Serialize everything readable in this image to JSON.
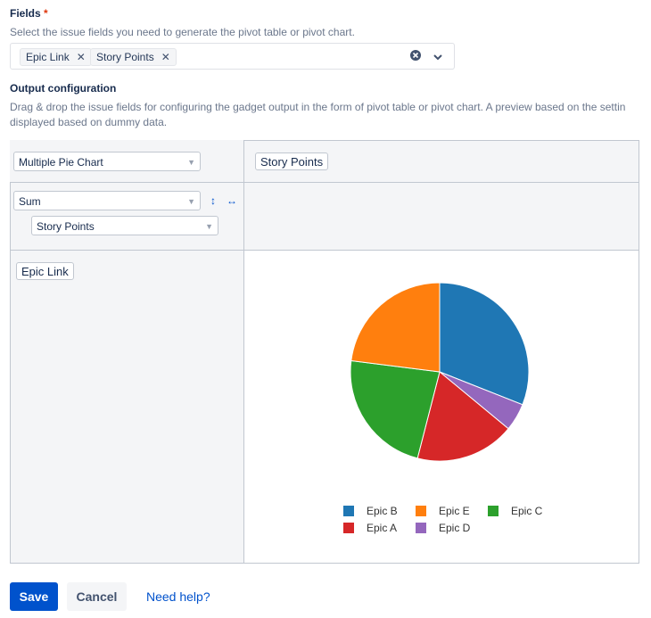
{
  "fields": {
    "label": "Fields",
    "required_mark": "*",
    "hint": "Select the issue fields you need to generate the pivot table or pivot chart.",
    "selected": [
      {
        "label": "Epic Link"
      },
      {
        "label": "Story Points"
      }
    ]
  },
  "output": {
    "label": "Output configuration",
    "hint_line1": "Drag & drop the issue fields for configuring the gadget output in the form of pivot table or pivot chart. A preview based on the settin",
    "hint_line2": "displayed based on dummy data.",
    "chart_type": "Multiple Pie Chart",
    "column_field": "Story Points",
    "aggregation": "Sum",
    "aggregation_field": "Story Points",
    "row_field": "Epic Link"
  },
  "chart_data": {
    "type": "pie",
    "categories": [
      "Epic B",
      "Epic D",
      "Epic A",
      "Epic C",
      "Epic E"
    ],
    "values": [
      31,
      5,
      18,
      23,
      23
    ],
    "colors": [
      "#1f77b4",
      "#9467bd",
      "#d62728",
      "#2ca02c",
      "#ff7f0e"
    ],
    "legend": [
      {
        "label": "Epic B",
        "color": "#1f77b4"
      },
      {
        "label": "Epic E",
        "color": "#ff7f0e"
      },
      {
        "label": "Epic C",
        "color": "#2ca02c"
      },
      {
        "label": "Epic A",
        "color": "#d62728"
      },
      {
        "label": "Epic D",
        "color": "#9467bd"
      }
    ],
    "legend_position": "bottom"
  },
  "actions": {
    "save": "Save",
    "cancel": "Cancel",
    "help": "Need help?"
  }
}
